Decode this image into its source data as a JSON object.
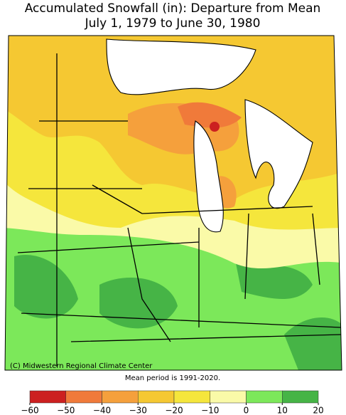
{
  "title": [
    "Accumulated Snowfall (in): Departure from Mean",
    "July 1, 1979 to June 30, 1980"
  ],
  "credit": "(C) Midwestern Regional Climate Center",
  "note": "Mean period is 1991-2020.",
  "legend": {
    "ticks": [
      {
        "value": -60,
        "label": "−60"
      },
      {
        "value": -50,
        "label": "−50"
      },
      {
        "value": -40,
        "label": "−40"
      },
      {
        "value": -30,
        "label": "−30"
      },
      {
        "value": -20,
        "label": "−20"
      },
      {
        "value": -10,
        "label": "−10"
      },
      0,
      10,
      20
    ],
    "colors": [
      "#cc2020",
      "#f07a3a",
      "#f5a03c",
      "#f5c832",
      "#f5e63c",
      "#fafaa8",
      "#7ce85a",
      "#46b446"
    ]
  }
}
